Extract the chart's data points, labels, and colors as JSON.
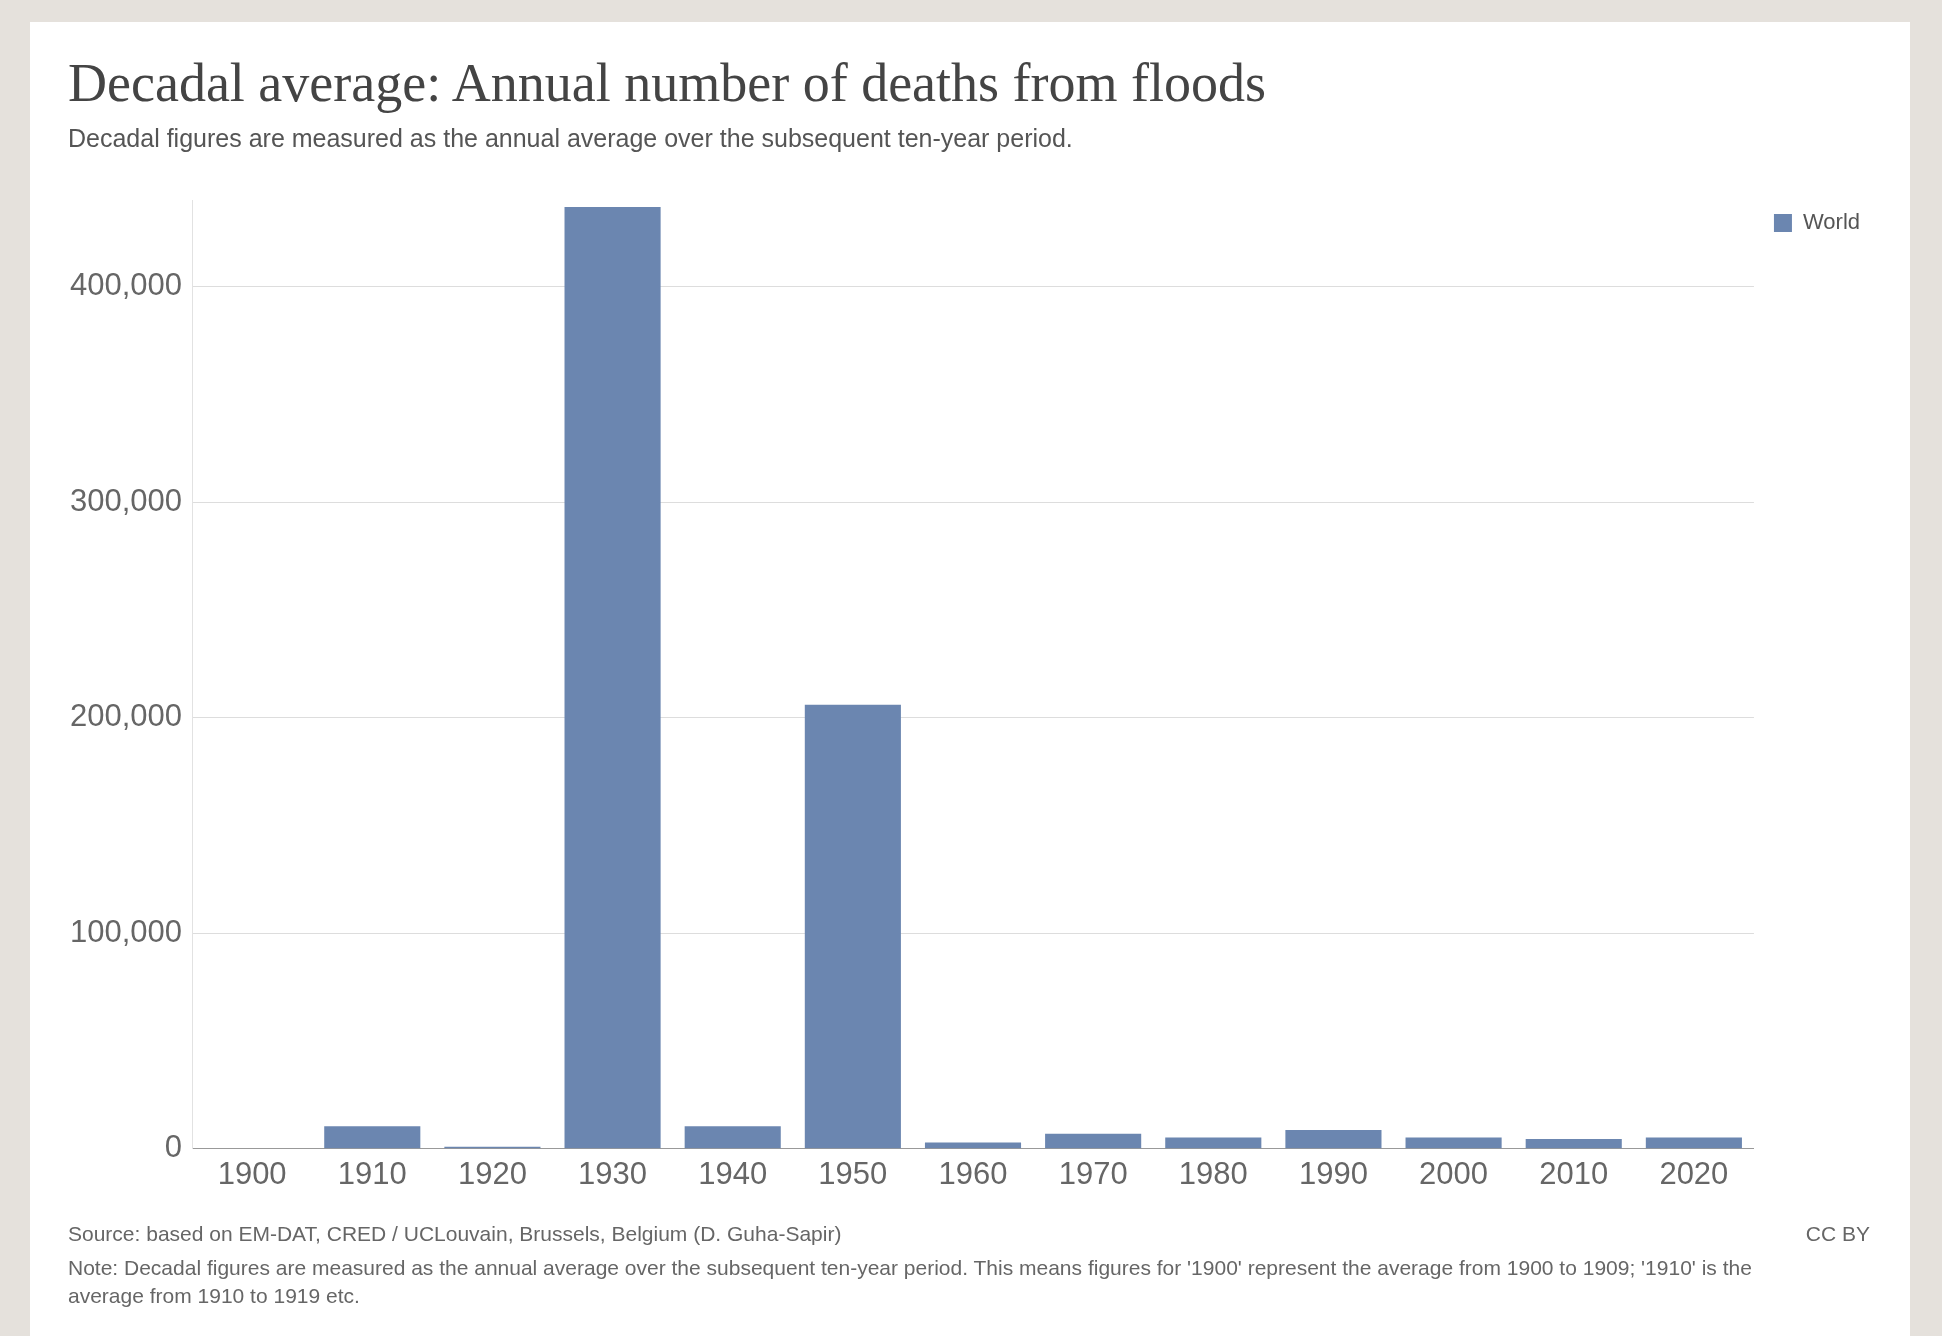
{
  "chart_data": {
    "type": "bar",
    "title": "Decadal average: Annual number of deaths from floods",
    "subtitle": "Decadal figures are measured as the annual average over the subsequent ten-year period.",
    "categories": [
      "1900",
      "1910",
      "1920",
      "1930",
      "1940",
      "1950",
      "1960",
      "1970",
      "1980",
      "1990",
      "2000",
      "2010",
      "2020"
    ],
    "series": [
      {
        "name": "World",
        "color": "#6b86b0",
        "values": [
          300,
          10500,
          1000,
          437000,
          10500,
          206000,
          2900,
          7000,
          5200,
          8700,
          5200,
          4600,
          5200
        ]
      }
    ],
    "ylim": [
      0,
      440000
    ],
    "yticks": [
      0,
      {
        "value": 100000,
        "label": "100,000"
      },
      {
        "value": 200000,
        "label": "200,000"
      },
      {
        "value": 300000,
        "label": "300,000"
      },
      {
        "value": 400000,
        "label": "400,000"
      }
    ],
    "grid": "y",
    "legend": "top right",
    "annotations": [
      "Source: based on EM-DAT, CRED / UCLouvain, Brussels, Belgium (D. Guha-Sapir)",
      "CC BY",
      "Note: Decadal figures are measured as the annual average over the subsequent ten-year period. This means figures for '1900' represent the average from 1900 to 1909; '1910' is the average from 1910 to 1919 etc."
    ]
  }
}
